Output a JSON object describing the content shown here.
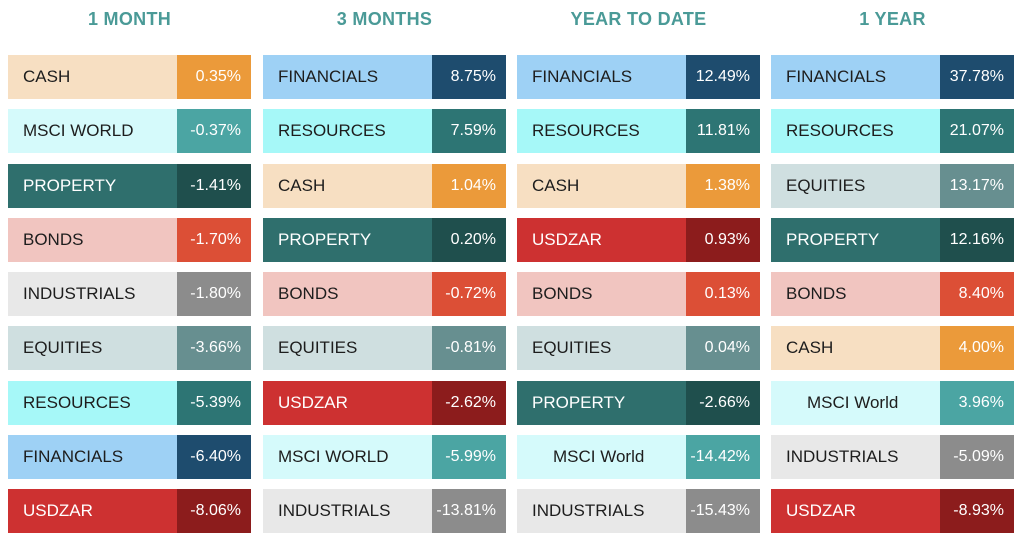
{
  "colors": {
    "CASH": {
      "label_bg": "#f7dfc2",
      "label_fg": "#1d1d1d",
      "value_bg": "#eb9a3a",
      "value_fg": "#ffffff"
    },
    "MSCI": {
      "label_bg": "#d5fafb",
      "label_fg": "#1d1d1d",
      "value_bg": "#4ba5a3",
      "value_fg": "#ffffff"
    },
    "PROPERTY": {
      "label_bg": "#2f6f6d",
      "label_fg": "#ffffff",
      "value_bg": "#1f4f4d",
      "value_fg": "#ffffff"
    },
    "BONDS": {
      "label_bg": "#f1c5c0",
      "label_fg": "#1d1d1d",
      "value_bg": "#dc4f36",
      "value_fg": "#ffffff"
    },
    "INDUSTRIALS": {
      "label_bg": "#e8e8e8",
      "label_fg": "#1d1d1d",
      "value_bg": "#8c8c8c",
      "value_fg": "#ffffff"
    },
    "EQUITIES": {
      "label_bg": "#cfdfe0",
      "label_fg": "#1d1d1d",
      "value_bg": "#678f90",
      "value_fg": "#ffffff"
    },
    "RESOURCES": {
      "label_bg": "#a6f8f8",
      "label_fg": "#1d1d1d",
      "value_bg": "#2d7574",
      "value_fg": "#ffffff"
    },
    "FINANCIALS": {
      "label_bg": "#9ed1f5",
      "label_fg": "#1d1d1d",
      "value_bg": "#1e4c6e",
      "value_fg": "#ffffff"
    },
    "USDZAR": {
      "label_bg": "#cd3131",
      "label_fg": "#ffffff",
      "value_bg": "#8c1c1c",
      "value_fg": "#ffffff"
    },
    "header": "#4a9a97"
  },
  "chart_data": {
    "type": "table",
    "columns": [
      {
        "header": "1 MONTH",
        "rows": [
          {
            "label": "CASH",
            "value": "0.35%",
            "cat": "CASH"
          },
          {
            "label": "MSCI WORLD",
            "value": "-0.37%",
            "cat": "MSCI"
          },
          {
            "label": "PROPERTY",
            "value": "-1.41%",
            "cat": "PROPERTY"
          },
          {
            "label": "BONDS",
            "value": "-1.70%",
            "cat": "BONDS"
          },
          {
            "label": "INDUSTRIALS",
            "value": "-1.80%",
            "cat": "INDUSTRIALS"
          },
          {
            "label": "EQUITIES",
            "value": "-3.66%",
            "cat": "EQUITIES"
          },
          {
            "label": "RESOURCES",
            "value": "-5.39%",
            "cat": "RESOURCES"
          },
          {
            "label": "FINANCIALS",
            "value": "-6.40%",
            "cat": "FINANCIALS"
          },
          {
            "label": "USDZAR",
            "value": "-8.06%",
            "cat": "USDZAR"
          }
        ]
      },
      {
        "header": "3 MONTHS",
        "rows": [
          {
            "label": "FINANCIALS",
            "value": "8.75%",
            "cat": "FINANCIALS"
          },
          {
            "label": "RESOURCES",
            "value": "7.59%",
            "cat": "RESOURCES"
          },
          {
            "label": "CASH",
            "value": "1.04%",
            "cat": "CASH"
          },
          {
            "label": "PROPERTY",
            "value": "0.20%",
            "cat": "PROPERTY"
          },
          {
            "label": "BONDS",
            "value": "-0.72%",
            "cat": "BONDS"
          },
          {
            "label": "EQUITIES",
            "value": "-0.81%",
            "cat": "EQUITIES"
          },
          {
            "label": "USDZAR",
            "value": "-2.62%",
            "cat": "USDZAR"
          },
          {
            "label": "MSCI WORLD",
            "value": "-5.99%",
            "cat": "MSCI"
          },
          {
            "label": "INDUSTRIALS",
            "value": "-13.81%",
            "cat": "INDUSTRIALS"
          }
        ]
      },
      {
        "header": "YEAR TO DATE",
        "rows": [
          {
            "label": "FINANCIALS",
            "value": "12.49%",
            "cat": "FINANCIALS"
          },
          {
            "label": "RESOURCES",
            "value": "11.81%",
            "cat": "RESOURCES"
          },
          {
            "label": "CASH",
            "value": "1.38%",
            "cat": "CASH"
          },
          {
            "label": "USDZAR",
            "value": "0.93%",
            "cat": "USDZAR"
          },
          {
            "label": "BONDS",
            "value": "0.13%",
            "cat": "BONDS"
          },
          {
            "label": "EQUITIES",
            "value": "0.04%",
            "cat": "EQUITIES"
          },
          {
            "label": "PROPERTY",
            "value": "-2.66%",
            "cat": "PROPERTY"
          },
          {
            "label": "MSCI World",
            "value": "-14.42%",
            "cat": "MSCI",
            "indent": true
          },
          {
            "label": "INDUSTRIALS",
            "value": "-15.43%",
            "cat": "INDUSTRIALS"
          }
        ]
      },
      {
        "header": "1 YEAR",
        "rows": [
          {
            "label": "FINANCIALS",
            "value": "37.78%",
            "cat": "FINANCIALS"
          },
          {
            "label": "RESOURCES",
            "value": "21.07%",
            "cat": "RESOURCES"
          },
          {
            "label": "EQUITIES",
            "value": "13.17%",
            "cat": "EQUITIES"
          },
          {
            "label": "PROPERTY",
            "value": "12.16%",
            "cat": "PROPERTY"
          },
          {
            "label": "BONDS",
            "value": "8.40%",
            "cat": "BONDS"
          },
          {
            "label": "CASH",
            "value": "4.00%",
            "cat": "CASH"
          },
          {
            "label": "MSCI World",
            "value": "3.96%",
            "cat": "MSCI",
            "indent": true
          },
          {
            "label": "INDUSTRIALS",
            "value": "-5.09%",
            "cat": "INDUSTRIALS"
          },
          {
            "label": "USDZAR",
            "value": "-8.93%",
            "cat": "USDZAR"
          }
        ]
      }
    ]
  }
}
